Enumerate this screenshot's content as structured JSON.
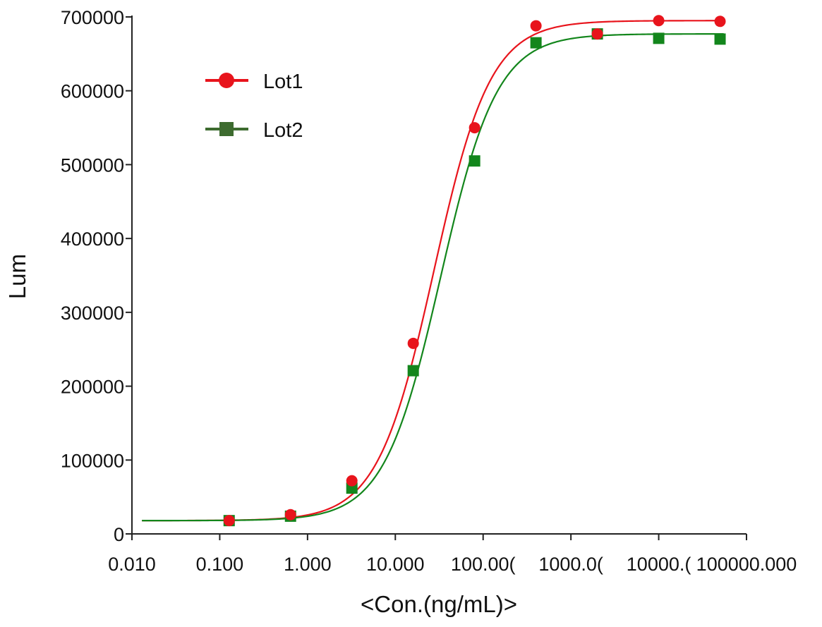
{
  "chart_data": {
    "type": "scatter",
    "title": "",
    "xlabel": "<Con.(ng/mL)>",
    "ylabel": "Lum",
    "x_scale": "log",
    "xlim": [
      0.01,
      100000
    ],
    "ylim": [
      0,
      700000
    ],
    "x_tick_labels": [
      "0.010",
      "0.100",
      "1.000",
      "10.000",
      "100.00(",
      "1000.0(",
      "10000.(",
      "100000.000"
    ],
    "x_tick_values": [
      0.01,
      0.1,
      1,
      10,
      100,
      1000,
      10000,
      100000
    ],
    "y_tick_labels": [
      "0",
      "100000",
      "200000",
      "300000",
      "400000",
      "500000",
      "600000",
      "700000"
    ],
    "y_tick_values": [
      0,
      100000,
      200000,
      300000,
      400000,
      500000,
      600000,
      700000
    ],
    "grid": false,
    "legend_position": "top-left",
    "series": [
      {
        "name": "Lot1",
        "color": "#e8141c",
        "marker": "circle",
        "fit_curve": "4PL",
        "x": [
          0.128,
          0.64,
          3.2,
          16,
          80,
          400,
          2000,
          10000,
          50000
        ],
        "y": [
          18000,
          26000,
          72000,
          258000,
          550000,
          688000,
          677000,
          695000,
          694000
        ]
      },
      {
        "name": "Lot2",
        "color": "#13861c",
        "legend_color": "#3d6b2f",
        "marker": "square",
        "fit_curve": "4PL",
        "x": [
          0.128,
          0.64,
          3.2,
          16,
          80,
          400,
          2000,
          10000,
          50000
        ],
        "y": [
          18000,
          24000,
          62000,
          221000,
          505000,
          665000,
          677000,
          671000,
          670000
        ]
      }
    ]
  }
}
